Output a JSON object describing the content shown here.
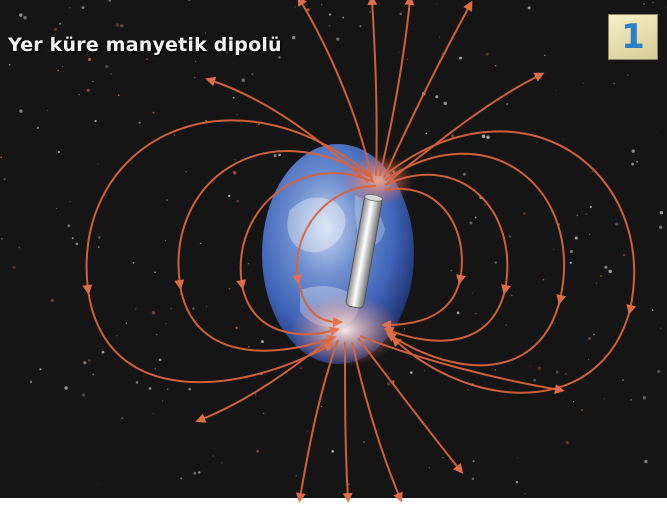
{
  "title": "Yer küre manyetik dipolü",
  "badge_number": "1",
  "colors": {
    "background": "#151515",
    "field_line": "#d9633a",
    "globe_ocean": "#3f64b8",
    "badge_text": "#2d7fc4"
  },
  "icons": {
    "field_arrow": "arrowhead",
    "bar_magnet": "cylinder"
  }
}
